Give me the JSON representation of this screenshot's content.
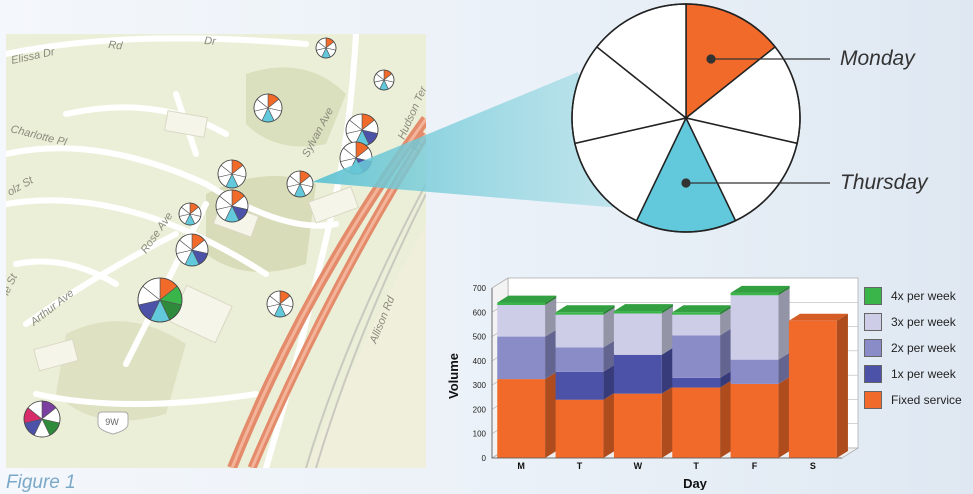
{
  "figure": {
    "caption": "Figure 1"
  },
  "map": {
    "streets": [
      "Elissa Dr",
      "Rd",
      "Dr",
      "Charlotte Pl",
      "Sylvan Ave",
      "Hudson Ter",
      "Pl",
      "Rose Ave",
      "Arthur Ave",
      "Allison Rd",
      "9W",
      "olz St",
      "le St"
    ]
  },
  "pie_callout": {
    "labels": {
      "monday": "Monday",
      "thursday": "Thursday"
    },
    "colors": {
      "monday": "#f26a2a",
      "thursday": "#62c8dc",
      "other": "#ffffff"
    }
  },
  "chart_data": {
    "type": "bar",
    "stacked": true,
    "xlabel": "Day",
    "ylabel": "Volume",
    "ylim": [
      0,
      700
    ],
    "yticks": [
      0,
      100,
      200,
      300,
      400,
      500,
      600,
      700
    ],
    "categories": [
      "M",
      "T",
      "W",
      "T",
      "F",
      "S"
    ],
    "series": [
      {
        "name": "Fixed service",
        "color": "#f26a2a",
        "values": [
          325,
          240,
          265,
          290,
          305,
          565
        ]
      },
      {
        "name": "1x per week",
        "color": "#4c52a8",
        "values": [
          0,
          115,
          160,
          40,
          0,
          0
        ]
      },
      {
        "name": "2x per week",
        "color": "#8a8cc8",
        "values": [
          175,
          100,
          0,
          175,
          100,
          0
        ]
      },
      {
        "name": "3x per week",
        "color": "#cecde8",
        "values": [
          130,
          135,
          170,
          85,
          265,
          0
        ]
      },
      {
        "name": "4x per week",
        "color": "#39b54a",
        "values": [
          10,
          10,
          10,
          10,
          10,
          0
        ]
      }
    ],
    "legend": {
      "position": "right"
    },
    "grid": true
  }
}
